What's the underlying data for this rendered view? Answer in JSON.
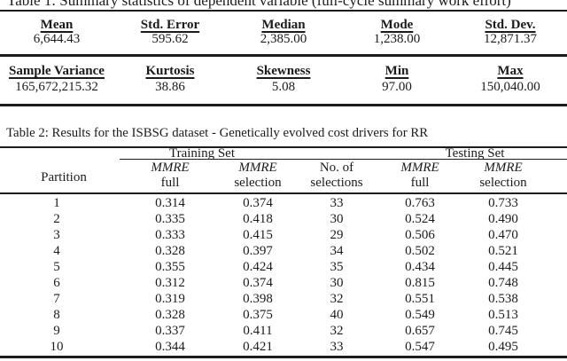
{
  "colors": {
    "text": "#1b1b1b",
    "rule": "#1c1c1c",
    "background": "#ffffff"
  },
  "table1": {
    "title": "Table 1: Summary statistics of dependent variable (full-cycle summary work effort)",
    "sections": [
      {
        "headers": [
          "Mean",
          "Std. Error",
          "Median",
          "Mode",
          "Std. Dev."
        ],
        "values": [
          "6,644.43",
          "595.62",
          "2,385.00",
          "1,238.00",
          "12,871.37"
        ]
      },
      {
        "headers": [
          "Sample Variance",
          "Kurtosis",
          "Skewness",
          "Min",
          "Max"
        ],
        "values": [
          "165,672,215.32",
          "38.86",
          "5.08",
          "97.00",
          "150,040.00"
        ]
      }
    ]
  },
  "table2": {
    "title": "Table 2: Results for the ISBSG dataset - Genetically evolved cost drivers for RR",
    "training_label": "Training Set",
    "testing_label": "Testing Set",
    "partition_label": "Partition",
    "columns": [
      {
        "line1": "MMRE",
        "line2": "full",
        "italic": true
      },
      {
        "line1": "MMRE",
        "line2": "selection",
        "italic": true
      },
      {
        "line1": "No. of",
        "line2": "selections",
        "italic": false
      },
      {
        "line1": "MMRE",
        "line2": "full",
        "italic": true
      },
      {
        "line1": "MMRE",
        "line2": "selection",
        "italic": true
      }
    ],
    "rows": [
      {
        "partition": "1",
        "values": [
          "0.314",
          "0.374",
          "33",
          "0.763",
          "0.733"
        ]
      },
      {
        "partition": "2",
        "values": [
          "0.335",
          "0.418",
          "30",
          "0.524",
          "0.490"
        ]
      },
      {
        "partition": "3",
        "values": [
          "0.333",
          "0.415",
          "29",
          "0.506",
          "0.470"
        ]
      },
      {
        "partition": "4",
        "values": [
          "0.328",
          "0.397",
          "34",
          "0.502",
          "0.521"
        ]
      },
      {
        "partition": "5",
        "values": [
          "0.355",
          "0.424",
          "35",
          "0.434",
          "0.445"
        ]
      },
      {
        "partition": "6",
        "values": [
          "0.312",
          "0.374",
          "30",
          "0.815",
          "0.748"
        ]
      },
      {
        "partition": "7",
        "values": [
          "0.319",
          "0.398",
          "32",
          "0.551",
          "0.538"
        ]
      },
      {
        "partition": "8",
        "values": [
          "0.328",
          "0.375",
          "40",
          "0.549",
          "0.513"
        ]
      },
      {
        "partition": "9",
        "values": [
          "0.337",
          "0.411",
          "32",
          "0.657",
          "0.745"
        ]
      },
      {
        "partition": "10",
        "values": [
          "0.344",
          "0.421",
          "33",
          "0.547",
          "0.495"
        ]
      }
    ]
  }
}
